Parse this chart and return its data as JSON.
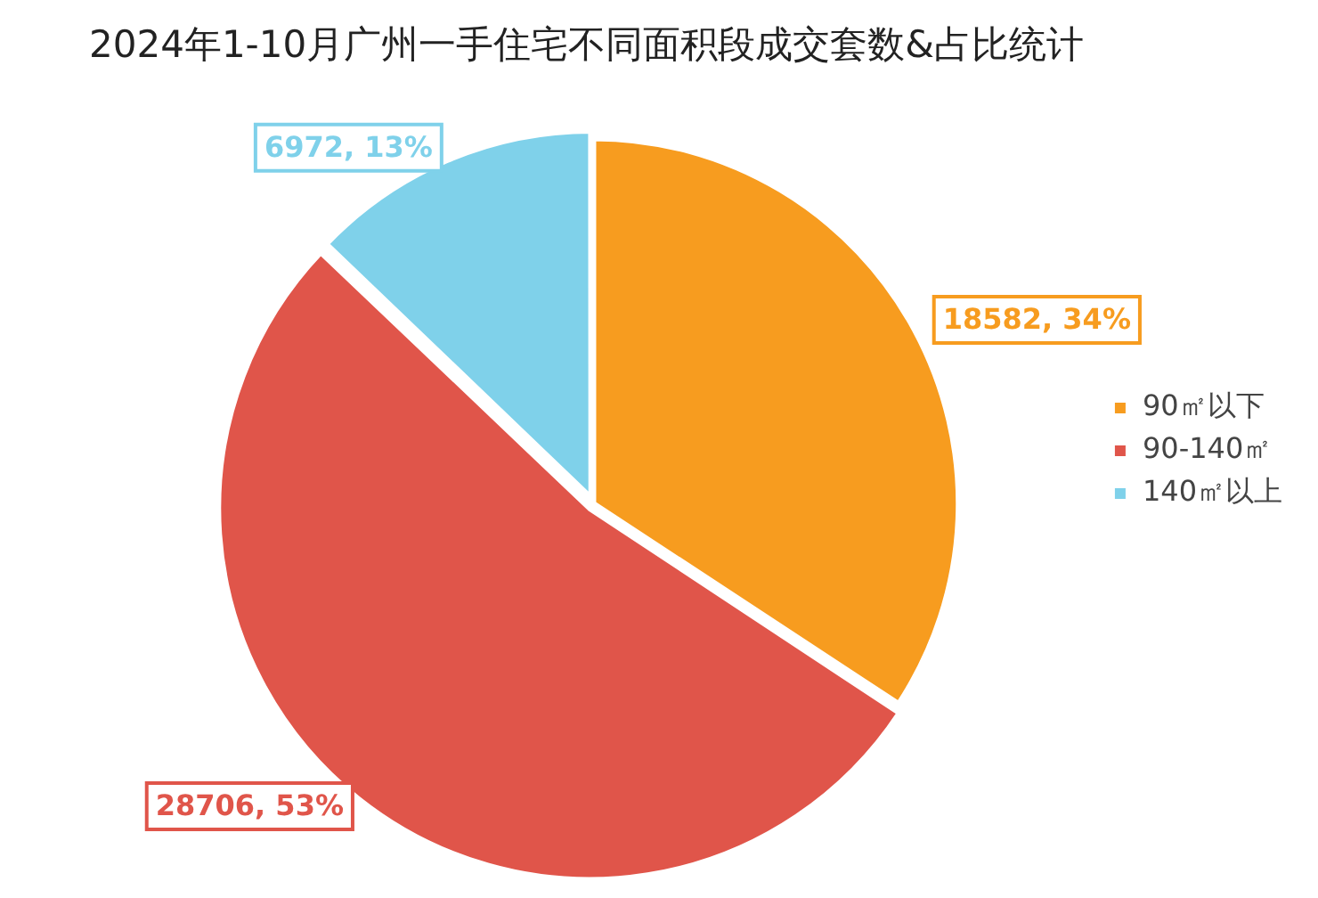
{
  "chart_data": {
    "type": "pie",
    "title": "2024年1-10月广州一手住宅不同面积段成交套数&占比统计",
    "categories": [
      "90㎡以下",
      "90-140㎡",
      "140㎡以上"
    ],
    "values": [
      18582,
      28706,
      6972
    ],
    "colors": [
      "#f79c1f",
      "#e0554a",
      "#7fd1ea"
    ],
    "value_labels": [
      "18582, 34%",
      "28706, 53%",
      "6972, 13%"
    ],
    "legend": "right"
  }
}
